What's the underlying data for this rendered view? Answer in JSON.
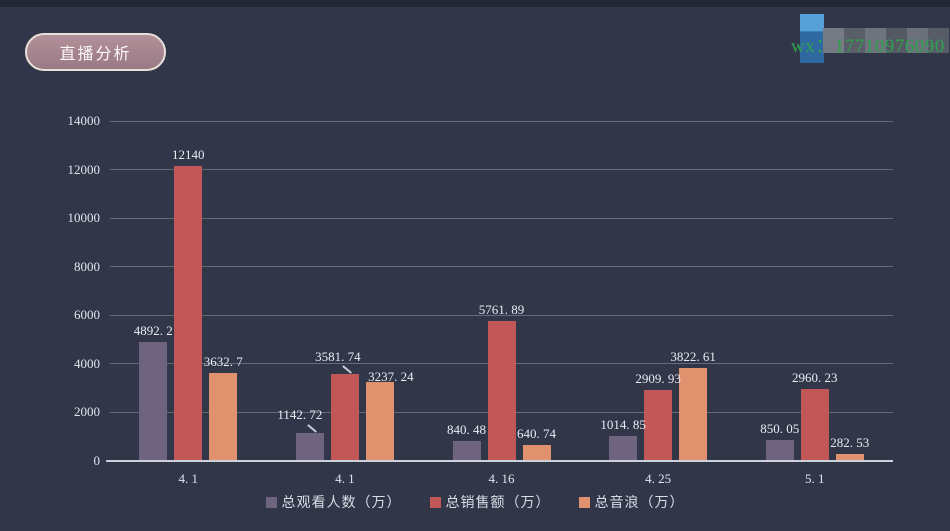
{
  "header": {
    "title": "直播分析"
  },
  "watermark": {
    "text": "wx：17710976090",
    "text_color": "#2fa24e",
    "blue_block_colors": [
      "#55a1d7",
      "#30699f"
    ],
    "gray_block_colors": [
      "#767a84",
      "#5a5e69",
      "#6f737d",
      "#555964",
      "#6c707a",
      "#585c67"
    ]
  },
  "chart_data": {
    "type": "bar",
    "title": "直播分析",
    "categories": [
      "4.1",
      "4.1",
      "4.16",
      "4.25",
      "5.1"
    ],
    "categories_display": [
      "4. 1",
      "4. 1",
      "4. 16",
      "4. 25",
      "5. 1"
    ],
    "series": [
      {
        "name": "总观看人数（万）",
        "color": "#6f6480",
        "values": [
          4892.2,
          1142.72,
          840.48,
          1014.85,
          850.05
        ],
        "value_labels": [
          "4892. 2",
          "1142. 72",
          "840. 48",
          "1014. 85",
          "850. 05"
        ]
      },
      {
        "name": "总销售额（万）",
        "color": "#c25757",
        "values": [
          12140,
          3581.74,
          5761.89,
          2909.93,
          2960.23
        ],
        "value_labels": [
          "12140",
          "3581. 74",
          "5761. 89",
          "2909. 93",
          "2960. 23"
        ]
      },
      {
        "name": "总音浪（万）",
        "color": "#e0916e",
        "values": [
          3632.7,
          3237.24,
          640.74,
          3822.61,
          282.53
        ],
        "value_labels": [
          "3632. 7",
          "3237. 24",
          "640. 74",
          "3822. 61",
          "282. 53"
        ]
      }
    ],
    "xlabel": "",
    "ylabel": "",
    "ylim": [
      0,
      14000
    ],
    "yticks": [
      0,
      2000,
      4000,
      6000,
      8000,
      10000,
      12000,
      14000
    ],
    "grid": true,
    "legend_position": "bottom",
    "axis_text_color": "#e3e6ed",
    "label_adjust": {
      "1": {
        "0": {
          "dx": -10,
          "dy": -7,
          "leader": true
        },
        "1": {
          "dx": -7,
          "dy": -6,
          "leader": true
        },
        "2": {
          "dx": 11,
          "dy": 6
        }
      }
    }
  }
}
